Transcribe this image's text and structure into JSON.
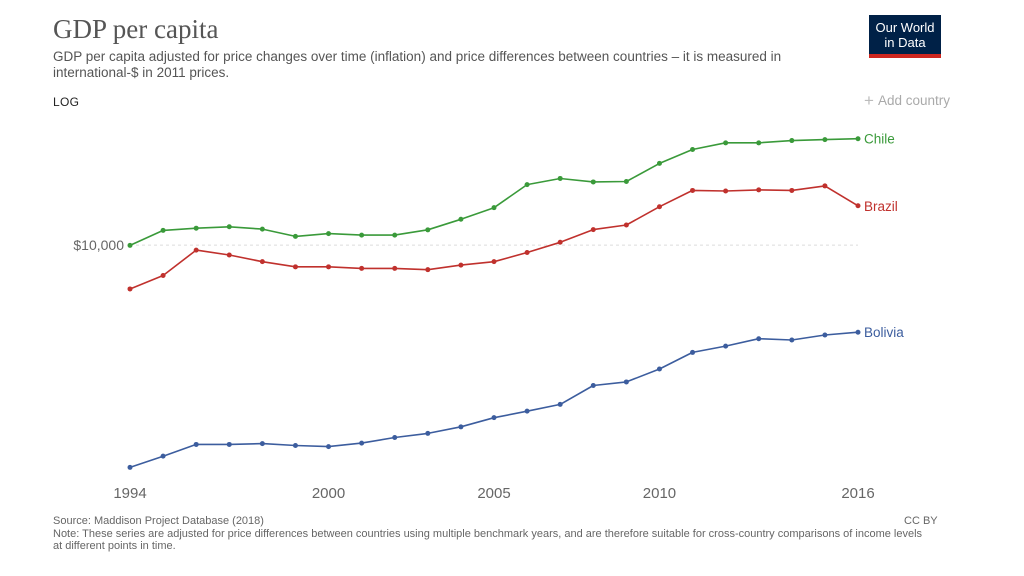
{
  "header": {
    "title": "GDP per capita",
    "subtitle": "GDP per capita adjusted for price changes over time (inflation) and price differences between countries – it is measured in international-$ in 2011 prices.",
    "logo_line1": "Our World",
    "logo_line2": "in Data",
    "log_label": "LOG",
    "add_country_label": "Add country"
  },
  "chart_data": {
    "type": "line",
    "title": "GDP per capita",
    "xlabel": "",
    "ylabel": "",
    "yscale": "log",
    "xlim": [
      1994,
      2016
    ],
    "ylim": [
      3000,
      20000
    ],
    "x_ticks": [
      1994,
      2000,
      2005,
      2010,
      2016
    ],
    "y_ticks": [
      {
        "value": 10000,
        "label": "$10,000"
      }
    ],
    "x": [
      1994,
      1995,
      1996,
      1997,
      1998,
      1999,
      2000,
      2001,
      2002,
      2003,
      2004,
      2005,
      2006,
      2007,
      2008,
      2009,
      2010,
      2011,
      2012,
      2013,
      2014,
      2015,
      2016
    ],
    "series": [
      {
        "name": "Chile",
        "color": "#3a9a3a",
        "values": [
          9990,
          10790,
          10910,
          10990,
          10860,
          10460,
          10610,
          10530,
          10530,
          10820,
          11420,
          12120,
          13640,
          14080,
          13830,
          13860,
          15210,
          16330,
          16900,
          16900,
          17100,
          17180,
          17260
        ]
      },
      {
        "name": "Brazil",
        "color": "#c0312d",
        "values": [
          7990,
          8560,
          9750,
          9510,
          9190,
          8950,
          8950,
          8880,
          8880,
          8820,
          9030,
          9190,
          9630,
          10150,
          10830,
          11090,
          12180,
          13240,
          13200,
          13280,
          13240,
          13550,
          12240
        ]
      },
      {
        "name": "Bolivia",
        "color": "#3c5d9e",
        "values": [
          3200,
          3390,
          3600,
          3600,
          3615,
          3580,
          3560,
          3625,
          3730,
          3810,
          3940,
          4130,
          4270,
          4420,
          4870,
          4960,
          5300,
          5770,
          5960,
          6190,
          6150,
          6310,
          6400
        ]
      }
    ]
  },
  "footer": {
    "source": "Source: Maddison Project Database (2018)",
    "note": "Note: These series are adjusted for price differences between countries using multiple benchmark years, and are therefore suitable for cross-country comparisons of income levels at different points in time.",
    "license": "CC BY"
  }
}
